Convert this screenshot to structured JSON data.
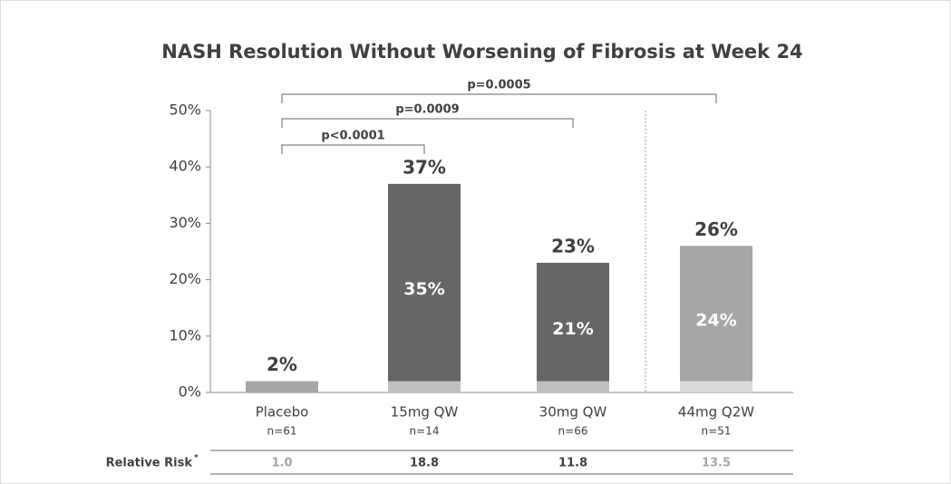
{
  "chart_data": {
    "type": "stacked_bar",
    "title": "NASH Resolution Without Worsening of Fibrosis at Week 24",
    "categories": [
      "Placebo",
      "15mg QW",
      "30mg QW",
      "44mg Q2W"
    ],
    "sublabels": [
      "n=61",
      "n=14",
      "n=66",
      "n=51"
    ],
    "series": [
      {
        "colors": [
          "#a6a6a6",
          "#bfbfbf",
          "#bfbfbf",
          "#d9d9d9"
        ],
        "values": [
          2,
          2,
          2,
          2
        ]
      },
      {
        "colors": [
          null,
          "#666666",
          "#666666",
          "#a6a6a6"
        ],
        "values": [
          null,
          35,
          21,
          24
        ],
        "value_labels": [
          null,
          "35%",
          "21%",
          "24%"
        ]
      }
    ],
    "totals": [
      2,
      37,
      23,
      26
    ],
    "total_labels": [
      "2%",
      "37%",
      "23%",
      "26%"
    ],
    "annotations": [
      "p<0.0001",
      "p=0.0009",
      "p=0.0005"
    ],
    "ylim": [
      0,
      50
    ],
    "yticks": [
      {
        "value": 0,
        "label": "0%"
      },
      {
        "value": 10,
        "label": "10%"
      },
      {
        "value": 20,
        "label": "20%"
      },
      {
        "value": 30,
        "label": "30%"
      },
      {
        "value": 40,
        "label": "40%"
      },
      {
        "value": 50,
        "label": "50%"
      }
    ],
    "table": {
      "label": "Relative Risk",
      "footnote_mark": "*",
      "values": [
        1.0,
        18.8,
        11.8,
        13.5
      ],
      "value_labels": [
        "1.0",
        "18.8",
        "11.8",
        "13.5"
      ],
      "colors": [
        "#a6a6a6",
        "#404040",
        "#404040",
        "#a6a6a6"
      ]
    }
  }
}
